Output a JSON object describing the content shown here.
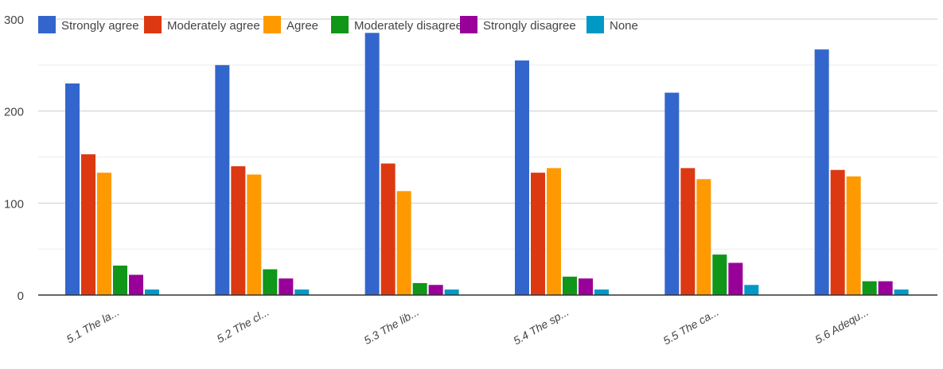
{
  "chart_data": {
    "type": "bar",
    "title": "",
    "xlabel": "",
    "ylabel": "",
    "ylim": [
      0,
      300
    ],
    "yticks": [
      0,
      100,
      200,
      300
    ],
    "grid": true,
    "legend_position": "top",
    "categories": [
      "5.1 The la...",
      "5.2 The cl...",
      "5.3 The lib...",
      "5.4 The sp...",
      "5.5 The ca...",
      "5.6 Adequ..."
    ],
    "series": [
      {
        "name": "Strongly agree",
        "color": "#3366cc",
        "values": [
          230,
          250,
          285,
          255,
          220,
          267
        ]
      },
      {
        "name": "Moderately agree",
        "color": "#dc3912",
        "values": [
          153,
          140,
          143,
          133,
          138,
          136
        ]
      },
      {
        "name": "Agree",
        "color": "#ff9900",
        "values": [
          133,
          131,
          113,
          138,
          126,
          129
        ]
      },
      {
        "name": "Moderately disagree",
        "color": "#109618",
        "values": [
          32,
          28,
          13,
          20,
          44,
          15
        ]
      },
      {
        "name": "Strongly disagree",
        "color": "#990099",
        "values": [
          22,
          18,
          11,
          18,
          35,
          15
        ]
      },
      {
        "name": "None",
        "color": "#0099c6",
        "values": [
          6,
          6,
          6,
          6,
          11,
          6
        ]
      }
    ]
  }
}
